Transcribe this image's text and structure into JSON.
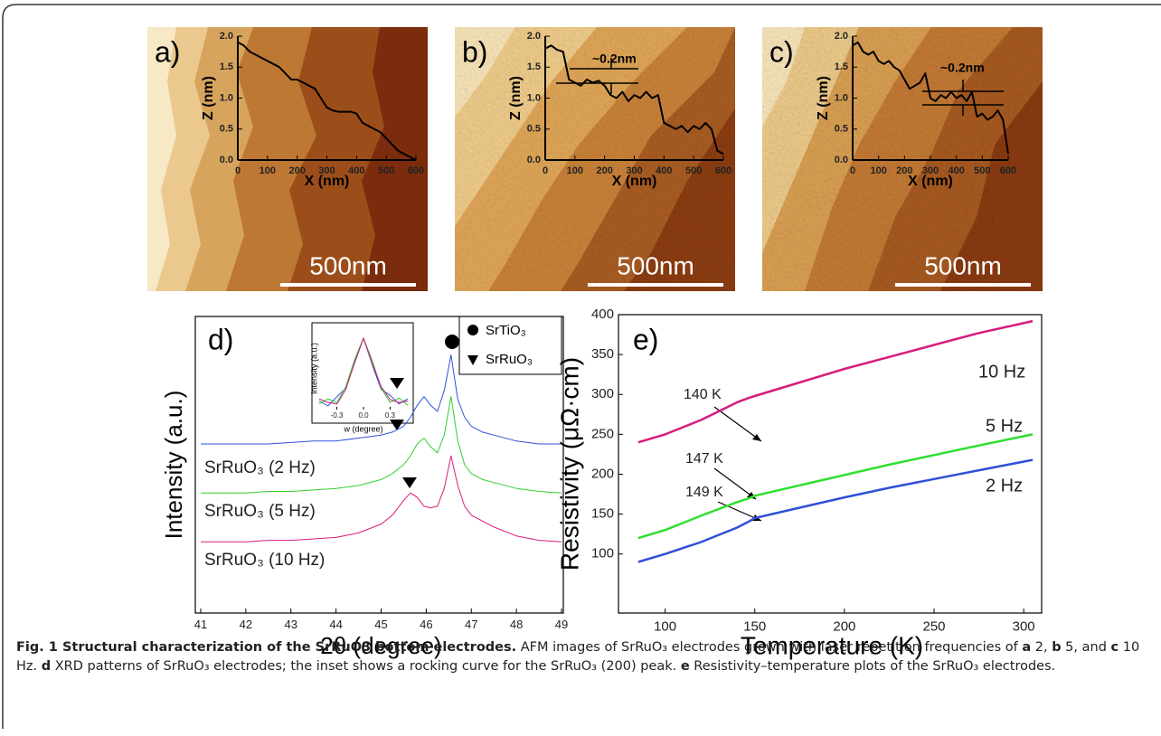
{
  "chart_data": [
    {
      "type": "line",
      "label": "a)",
      "scale_bar": "500nm",
      "xlabel": "X (nm)",
      "ylabel": "Z (nm)",
      "color": "#000000",
      "x": [
        0,
        20,
        40,
        60,
        80,
        100,
        120,
        140,
        160,
        180,
        200,
        220,
        240,
        260,
        280,
        300,
        320,
        340,
        360,
        380,
        400,
        420,
        440,
        460,
        480,
        500,
        520,
        540,
        560,
        580,
        600
      ],
      "values": [
        1.9,
        1.85,
        1.75,
        1.7,
        1.65,
        1.6,
        1.55,
        1.5,
        1.4,
        1.3,
        1.3,
        1.25,
        1.2,
        1.15,
        1.0,
        0.85,
        0.8,
        0.78,
        0.78,
        0.78,
        0.75,
        0.6,
        0.55,
        0.5,
        0.45,
        0.35,
        0.25,
        0.15,
        0.1,
        0.05,
        0.0
      ],
      "xlim": [
        0,
        600
      ],
      "xticks": [
        0,
        100,
        200,
        300,
        400,
        500,
        600
      ],
      "ylim": [
        0,
        2
      ],
      "yticks": [
        {
          "value": 0,
          "label": "0.0"
        },
        {
          "value": 0.5,
          "label": "0.5"
        },
        {
          "value": 1,
          "label": "1.0"
        },
        {
          "value": 1.5,
          "label": "1.5"
        },
        {
          "value": 2,
          "label": "2.0"
        }
      ]
    },
    {
      "type": "line",
      "label": "b)",
      "scale_bar": "500nm",
      "annotation": "~0.2nm",
      "xlabel": "X (nm)",
      "ylabel": "Z (nm)",
      "color": "#000000",
      "x": [
        0,
        20,
        40,
        60,
        80,
        100,
        120,
        140,
        160,
        180,
        200,
        220,
        240,
        260,
        280,
        300,
        320,
        340,
        360,
        380,
        400,
        420,
        440,
        460,
        480,
        500,
        520,
        540,
        560,
        580,
        600
      ],
      "values": [
        1.8,
        1.85,
        1.78,
        1.75,
        1.3,
        1.25,
        1.2,
        1.3,
        1.25,
        1.28,
        1.2,
        1.05,
        1.0,
        1.1,
        0.95,
        1.05,
        1.0,
        1.1,
        1.0,
        1.05,
        0.6,
        0.55,
        0.5,
        0.55,
        0.45,
        0.55,
        0.5,
        0.6,
        0.5,
        0.15,
        0.1
      ],
      "xlim": [
        0,
        600
      ],
      "xticks": [
        0,
        100,
        200,
        300,
        400,
        500,
        600
      ],
      "ylim": [
        0,
        2
      ],
      "yticks": [
        {
          "value": 0,
          "label": "0.0"
        },
        {
          "value": 0.5,
          "label": "0.5"
        },
        {
          "value": 1,
          "label": "1.0"
        },
        {
          "value": 1.5,
          "label": "1.5"
        },
        {
          "value": 2,
          "label": "2.0"
        }
      ]
    },
    {
      "type": "line",
      "label": "c)",
      "scale_bar": "500nm",
      "annotation": "~0.2nm",
      "xlabel": "X (nm)",
      "ylabel": "Z (nm)",
      "color": "#000000",
      "x": [
        0,
        20,
        40,
        60,
        80,
        100,
        120,
        140,
        160,
        180,
        200,
        220,
        240,
        260,
        280,
        300,
        320,
        340,
        360,
        380,
        400,
        420,
        440,
        460,
        480,
        500,
        520,
        540,
        560,
        580,
        600
      ],
      "values": [
        1.85,
        1.9,
        1.75,
        1.7,
        1.75,
        1.6,
        1.55,
        1.6,
        1.5,
        1.45,
        1.3,
        1.15,
        1.2,
        1.25,
        1.4,
        1.0,
        0.95,
        1.05,
        1.0,
        1.1,
        1.0,
        1.05,
        0.95,
        1.1,
        0.7,
        0.75,
        0.65,
        0.7,
        0.8,
        0.65,
        0.1
      ],
      "xlim": [
        0,
        600
      ],
      "xticks": [
        0,
        100,
        200,
        300,
        400,
        500,
        600
      ],
      "ylim": [
        0,
        2
      ],
      "yticks": [
        {
          "value": 0,
          "label": "0.0"
        },
        {
          "value": 0.5,
          "label": "0.5"
        },
        {
          "value": 1,
          "label": "1.0"
        },
        {
          "value": 1.5,
          "label": "1.5"
        },
        {
          "value": 2,
          "label": "2.0"
        }
      ]
    },
    {
      "type": "line",
      "label": "d)",
      "xlabel": "2θ (degree)",
      "ylabel": "Intensity (a.u.)",
      "legend": [
        "SrTiO₃",
        "SrRuO₃"
      ],
      "x": [
        41,
        41.5,
        42,
        42.5,
        43,
        43.5,
        44,
        44.5,
        45,
        45.25,
        45.5,
        45.65,
        45.8,
        45.95,
        46.1,
        46.25,
        46.4,
        46.55,
        46.7,
        46.85,
        47,
        47.25,
        47.5,
        48,
        48.5,
        49
      ],
      "series": [
        {
          "name": "SrRuO₃ (2 Hz)",
          "color": "#2f50d8",
          "values": [
            5.7,
            5.7,
            5.7,
            5.7,
            5.75,
            5.8,
            5.8,
            5.9,
            6.0,
            6.1,
            6.3,
            6.6,
            7.0,
            7.3,
            7.0,
            6.8,
            7.5,
            8.7,
            7.2,
            6.6,
            6.3,
            6.1,
            6.0,
            5.8,
            5.7,
            5.7
          ]
        },
        {
          "name": "SrRuO₃ (5 Hz)",
          "color": "#2fcf2f",
          "values": [
            4.05,
            4.05,
            4.05,
            4.1,
            4.1,
            4.15,
            4.2,
            4.3,
            4.5,
            4.7,
            5.0,
            5.3,
            5.7,
            5.9,
            5.6,
            5.4,
            6.0,
            7.3,
            5.8,
            5.0,
            4.7,
            4.5,
            4.4,
            4.2,
            4.1,
            4.05
          ]
        },
        {
          "name": "SrRuO₃ (10 Hz)",
          "color": "#d81b7c",
          "values": [
            2.4,
            2.4,
            2.4,
            2.45,
            2.45,
            2.5,
            2.55,
            2.7,
            3.0,
            3.3,
            3.8,
            4.05,
            3.9,
            3.6,
            3.55,
            3.6,
            4.2,
            5.3,
            4.3,
            3.6,
            3.3,
            3.1,
            2.9,
            2.6,
            2.45,
            2.4
          ]
        }
      ],
      "xlim": [
        41,
        49
      ],
      "xticks": [
        41,
        42,
        43,
        44,
        45,
        46,
        47,
        48,
        49
      ],
      "ylim": [
        0,
        10
      ]
    },
    {
      "type": "line",
      "xlabel": "w (degree)",
      "ylabel": "Intensity (a.u.)",
      "x": [
        -0.5,
        -0.4,
        -0.3,
        -0.2,
        -0.1,
        0,
        0.1,
        0.2,
        0.3,
        0.4,
        0.5
      ],
      "series": [
        {
          "color": "#2f50d8",
          "values": [
            0.12,
            0.05,
            0.18,
            0.3,
            0.65,
            1.0,
            0.62,
            0.28,
            0.2,
            0.08,
            0.15
          ]
        },
        {
          "color": "#2fcf2f",
          "values": [
            0.08,
            0.15,
            0.1,
            0.32,
            0.7,
            1.0,
            0.68,
            0.3,
            0.1,
            0.16,
            0.06
          ]
        },
        {
          "color": "#d81b7c",
          "values": [
            0.15,
            0.1,
            0.08,
            0.28,
            0.66,
            1.0,
            0.64,
            0.32,
            0.14,
            0.1,
            0.12
          ]
        }
      ],
      "xlim": [
        -0.54,
        0.54
      ],
      "xticks": [
        -0.3,
        {
          "value": 0,
          "label": "0.0"
        },
        0.3
      ],
      "ylim": [
        0,
        1.15
      ]
    },
    {
      "type": "line",
      "label": "e)",
      "xlabel": "Temperature (K)",
      "ylabel": "Resistivity (μΩ·cm)",
      "annotations": [
        "140 K",
        "147 K",
        "149 K"
      ],
      "x": [
        85,
        100,
        120,
        140,
        147,
        150,
        175,
        200,
        225,
        250,
        275,
        305
      ],
      "series": [
        {
          "name": "10 Hz",
          "color": "#d81b7c",
          "values": [
            240,
            250,
            268,
            290,
            296,
            298,
            315,
            332,
            347,
            362,
            377,
            392
          ]
        },
        {
          "name": "5 Hz",
          "color": "#2fdf2f",
          "values": [
            120,
            130,
            148,
            165,
            170,
            173,
            186,
            199,
            212,
            224,
            236,
            250
          ]
        },
        {
          "name": "2 Hz",
          "color": "#2f50d8",
          "values": [
            90,
            100,
            115,
            133,
            141,
            145,
            158,
            171,
            183,
            194,
            205,
            218
          ]
        }
      ],
      "xlim": [
        77,
        309
      ],
      "xticks": [
        100,
        150,
        200,
        250,
        300
      ],
      "ylim": [
        26,
        400
      ],
      "yticks": [
        100,
        150,
        200,
        250,
        300,
        350,
        400
      ]
    }
  ],
  "caption": {
    "title": "Fig. 1 Structural characterization of the SrRuO3 bottom electrodes.",
    "parts": [
      "AFM images of SrRuO₃ electrodes grown with laser repetition frequencies of ",
      "a",
      " 2, ",
      "b",
      " 5, and ",
      "c",
      " 10 Hz. ",
      "d",
      " XRD patterns of SrRuO₃ electrodes; the inset shows a rocking curve for the SrRuO₃ (200) peak. ",
      "e",
      " Resistivity–temperature plots of the SrRuO₃ electrodes."
    ]
  }
}
